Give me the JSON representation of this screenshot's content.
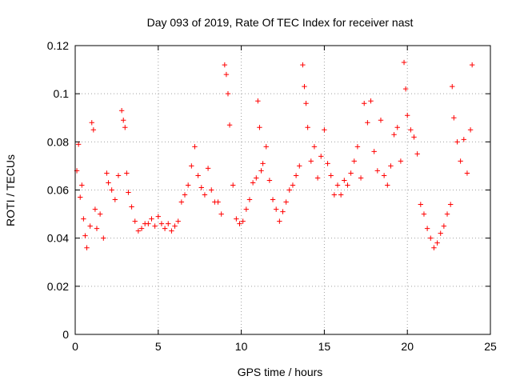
{
  "chart_data": {
    "type": "scatter",
    "title": "Day 093 of 2019, Rate Of TEC Index for receiver nast",
    "xlabel": "GPS time / hours",
    "ylabel": "ROTI / TECUs",
    "xlim": [
      0,
      25
    ],
    "ylim": [
      0,
      0.12
    ],
    "xticks": [
      0,
      5,
      10,
      15,
      20,
      25
    ],
    "xtick_labels": [
      "0",
      "5",
      "10",
      "15",
      "20",
      "25"
    ],
    "yticks": [
      0,
      0.02,
      0.04,
      0.06,
      0.08,
      0.1,
      0.12
    ],
    "ytick_labels": [
      "0",
      "0.02",
      "0.04",
      "0.06",
      "0.08",
      "0.1",
      "0.12"
    ],
    "grid": true,
    "marker": "plus",
    "color": "#ff0000",
    "series": [
      {
        "x": [
          0.1,
          0.2,
          0.3,
          0.4,
          0.5,
          0.6,
          0.7,
          0.9,
          1.0,
          1.1,
          1.2,
          1.3,
          1.5,
          1.7,
          1.9,
          2.0,
          2.2,
          2.4,
          2.6,
          2.8,
          2.9,
          3.0,
          3.1,
          3.2,
          3.4,
          3.6,
          3.8,
          4.0,
          4.2,
          4.4,
          4.6,
          4.8,
          5.0,
          5.2,
          5.4,
          5.6,
          5.8,
          6.0,
          6.2,
          6.4,
          6.6,
          6.8,
          7.0,
          7.2,
          7.4,
          7.6,
          7.8,
          8.0,
          8.2,
          8.4,
          8.6,
          8.8,
          9.0,
          9.1,
          9.2,
          9.3,
          9.5,
          9.7,
          9.9,
          10.1,
          10.3,
          10.5,
          10.7,
          10.9,
          11.0,
          11.1,
          11.2,
          11.3,
          11.5,
          11.7,
          11.9,
          12.1,
          12.3,
          12.5,
          12.7,
          12.9,
          13.1,
          13.3,
          13.5,
          13.7,
          13.8,
          13.9,
          14.0,
          14.2,
          14.4,
          14.6,
          14.8,
          15.0,
          15.2,
          15.4,
          15.6,
          15.8,
          16.0,
          16.2,
          16.4,
          16.6,
          16.8,
          17.0,
          17.2,
          17.4,
          17.6,
          17.8,
          18.0,
          18.2,
          18.4,
          18.6,
          18.8,
          19.0,
          19.2,
          19.4,
          19.6,
          19.8,
          19.9,
          20.0,
          20.2,
          20.4,
          20.6,
          20.8,
          21.0,
          21.2,
          21.4,
          21.6,
          21.8,
          22.0,
          22.2,
          22.4,
          22.6,
          22.7,
          22.8,
          23.0,
          23.2,
          23.4,
          23.6,
          23.8,
          23.9
        ],
        "y": [
          0.068,
          0.079,
          0.057,
          0.062,
          0.048,
          0.041,
          0.036,
          0.045,
          0.088,
          0.085,
          0.052,
          0.044,
          0.05,
          0.04,
          0.067,
          0.063,
          0.06,
          0.056,
          0.066,
          0.093,
          0.089,
          0.086,
          0.067,
          0.059,
          0.053,
          0.047,
          0.043,
          0.044,
          0.046,
          0.046,
          0.048,
          0.045,
          0.049,
          0.046,
          0.044,
          0.046,
          0.043,
          0.045,
          0.047,
          0.055,
          0.058,
          0.062,
          0.07,
          0.078,
          0.066,
          0.061,
          0.058,
          0.069,
          0.06,
          0.055,
          0.055,
          0.05,
          0.112,
          0.108,
          0.1,
          0.087,
          0.062,
          0.048,
          0.046,
          0.047,
          0.052,
          0.056,
          0.063,
          0.065,
          0.097,
          0.086,
          0.068,
          0.071,
          0.078,
          0.064,
          0.056,
          0.052,
          0.047,
          0.051,
          0.055,
          0.06,
          0.062,
          0.066,
          0.07,
          0.112,
          0.103,
          0.096,
          0.086,
          0.072,
          0.078,
          0.065,
          0.074,
          0.085,
          0.071,
          0.066,
          0.058,
          0.062,
          0.058,
          0.064,
          0.062,
          0.067,
          0.072,
          0.078,
          0.065,
          0.096,
          0.088,
          0.097,
          0.076,
          0.068,
          0.089,
          0.066,
          0.062,
          0.07,
          0.083,
          0.086,
          0.072,
          0.113,
          0.102,
          0.091,
          0.085,
          0.082,
          0.075,
          0.054,
          0.05,
          0.044,
          0.04,
          0.036,
          0.038,
          0.042,
          0.045,
          0.05,
          0.054,
          0.103,
          0.09,
          0.08,
          0.072,
          0.081,
          0.067,
          0.085,
          0.112
        ]
      }
    ]
  }
}
